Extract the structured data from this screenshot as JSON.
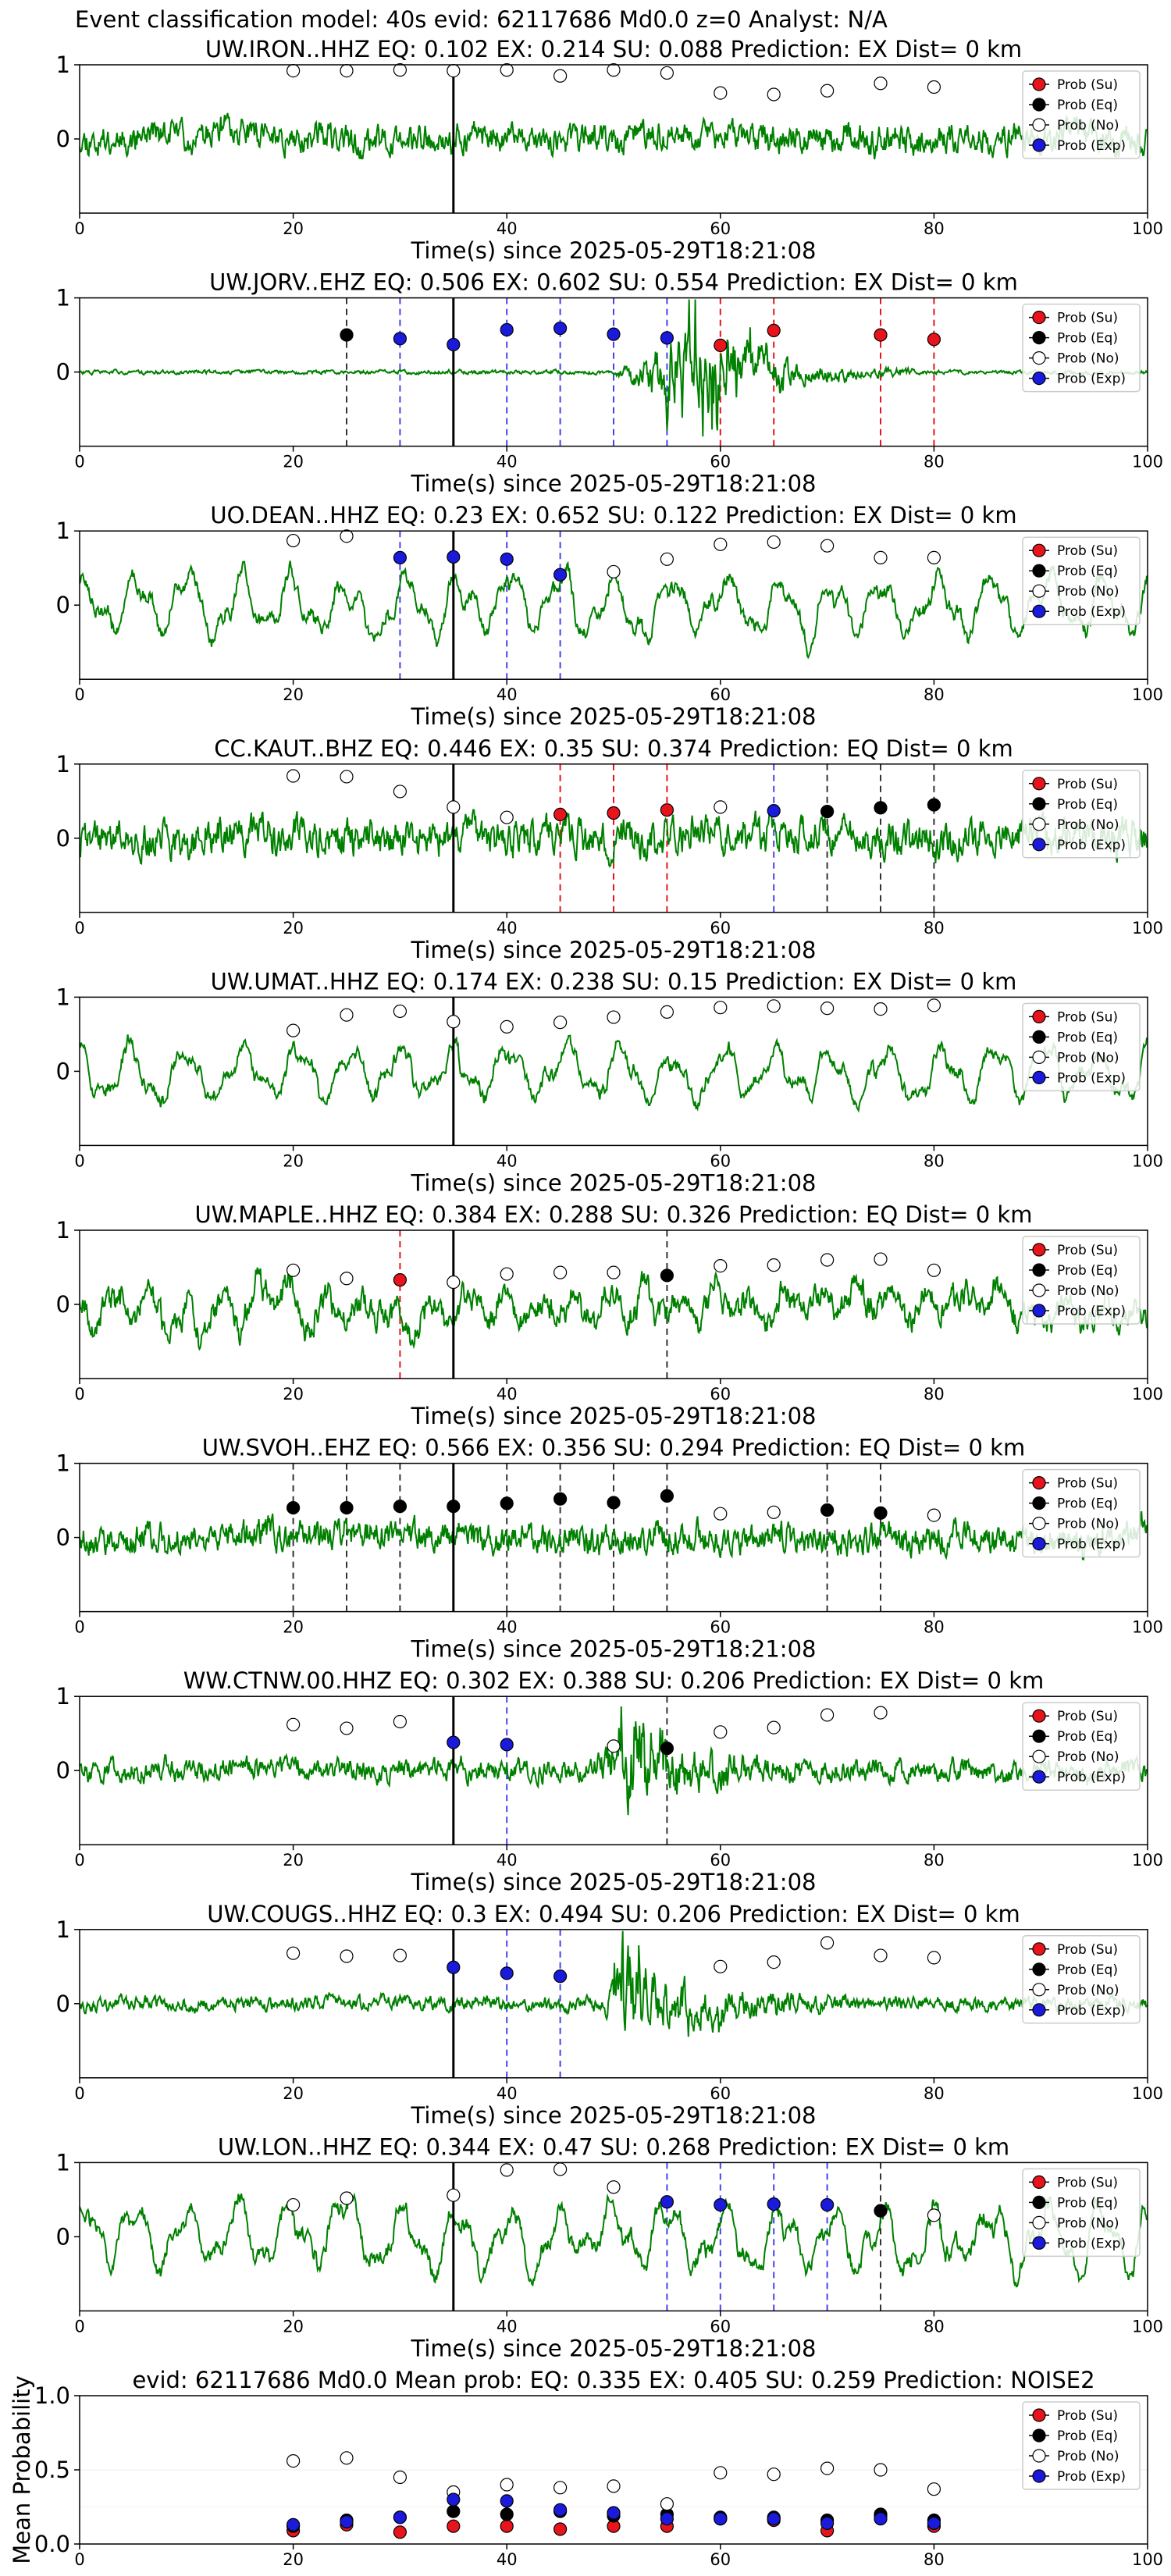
{
  "title": "Event classification model: 40s evid: 62117686 Md0.0 z=0 Analyst: N/A",
  "xlabel": "Time(s) since 2025-05-29T18:21:08",
  "legend": [
    "Prob (Su)",
    "Prob (Eq)",
    "Prob (No)",
    "Prob (Exp)"
  ],
  "colors": {
    "su": "#e8141c",
    "eq": "#000000",
    "no": "#ffffff",
    "exp": "#1a1adb",
    "waveform": "#008000",
    "su_line": "#e8141c",
    "eq_line": "#333333",
    "exp_line": "#4444ee"
  },
  "chart_data": [
    {
      "type": "line",
      "title": "UW.IRON..HHZ   EQ: 0.102  EX: 0.214  SU: 0.088   Prediction: EX    Dist= 0 km",
      "xlim": [
        0,
        100
      ],
      "ylim": [
        -1,
        1
      ],
      "xticks": [
        0,
        20,
        40,
        60,
        80,
        100
      ],
      "yticks": [
        "1",
        "0"
      ],
      "origin": 35,
      "waveform": {
        "style": "noisy",
        "amplitude": 0.38,
        "burst": null,
        "seed": 11
      },
      "points": [
        {
          "t": 20,
          "cls": "no",
          "p": 0.92
        },
        {
          "t": 25,
          "cls": "no",
          "p": 0.92
        },
        {
          "t": 30,
          "cls": "no",
          "p": 0.93
        },
        {
          "t": 35,
          "cls": "no",
          "p": 0.92
        },
        {
          "t": 40,
          "cls": "no",
          "p": 0.93
        },
        {
          "t": 45,
          "cls": "no",
          "p": 0.85
        },
        {
          "t": 50,
          "cls": "no",
          "p": 0.93
        },
        {
          "t": 55,
          "cls": "no",
          "p": 0.89
        },
        {
          "t": 60,
          "cls": "no",
          "p": 0.62
        },
        {
          "t": 65,
          "cls": "no",
          "p": 0.6
        },
        {
          "t": 70,
          "cls": "no",
          "p": 0.65
        },
        {
          "t": 75,
          "cls": "no",
          "p": 0.75
        },
        {
          "t": 80,
          "cls": "no",
          "p": 0.7
        }
      ]
    },
    {
      "type": "line",
      "title": "UW.JORV..EHZ   EQ: 0.506  EX: 0.602  SU: 0.554   Prediction: EX    Dist= 0 km",
      "xlim": [
        0,
        100
      ],
      "ylim": [
        -1,
        1
      ],
      "xticks": [
        0,
        20,
        40,
        60,
        80,
        100
      ],
      "yticks": [
        "1",
        "0"
      ],
      "origin": 35,
      "waveform": {
        "style": "quiet",
        "amplitude": 0.05,
        "burst": {
          "start": 50,
          "peak": 58,
          "end": 78,
          "amp": 0.95
        },
        "seed": 23
      },
      "points": [
        {
          "t": 25,
          "cls": "eq",
          "p": 0.5
        },
        {
          "t": 30,
          "cls": "exp",
          "p": 0.45
        },
        {
          "t": 35,
          "cls": "exp",
          "p": 0.37
        },
        {
          "t": 40,
          "cls": "exp",
          "p": 0.57
        },
        {
          "t": 45,
          "cls": "exp",
          "p": 0.59
        },
        {
          "t": 50,
          "cls": "exp",
          "p": 0.51
        },
        {
          "t": 55,
          "cls": "exp",
          "p": 0.46
        },
        {
          "t": 60,
          "cls": "su",
          "p": 0.36
        },
        {
          "t": 65,
          "cls": "su",
          "p": 0.56
        },
        {
          "t": 75,
          "cls": "su",
          "p": 0.5
        },
        {
          "t": 80,
          "cls": "su",
          "p": 0.44
        }
      ]
    },
    {
      "type": "line",
      "title": "UO.DEAN..HHZ   EQ: 0.23  EX: 0.652  SU: 0.122   Prediction: EX    Dist= 0 km",
      "xlim": [
        0,
        100
      ],
      "ylim": [
        -1,
        1
      ],
      "xticks": [
        0,
        20,
        40,
        60,
        80,
        100
      ],
      "yticks": [
        "1",
        "0"
      ],
      "origin": 35,
      "waveform": {
        "style": "slow",
        "amplitude": 0.55,
        "burst": null,
        "seed": 37
      },
      "points": [
        {
          "t": 20,
          "cls": "no",
          "p": 0.87
        },
        {
          "t": 25,
          "cls": "no",
          "p": 0.93
        },
        {
          "t": 30,
          "cls": "exp",
          "p": 0.64
        },
        {
          "t": 35,
          "cls": "exp",
          "p": 0.65
        },
        {
          "t": 40,
          "cls": "exp",
          "p": 0.62
        },
        {
          "t": 45,
          "cls": "exp",
          "p": 0.41
        },
        {
          "t": 50,
          "cls": "no",
          "p": 0.45
        },
        {
          "t": 55,
          "cls": "no",
          "p": 0.62
        },
        {
          "t": 60,
          "cls": "no",
          "p": 0.82
        },
        {
          "t": 65,
          "cls": "no",
          "p": 0.85
        },
        {
          "t": 70,
          "cls": "no",
          "p": 0.8
        },
        {
          "t": 75,
          "cls": "no",
          "p": 0.64
        },
        {
          "t": 80,
          "cls": "no",
          "p": 0.64
        }
      ]
    },
    {
      "type": "line",
      "title": "CC.KAUT..BHZ   EQ: 0.446  EX: 0.35  SU: 0.374   Prediction: EQ    Dist= 0 km",
      "xlim": [
        0,
        100
      ],
      "ylim": [
        -1,
        1
      ],
      "xticks": [
        0,
        20,
        40,
        60,
        80,
        100
      ],
      "yticks": [
        "1",
        "0"
      ],
      "origin": 35,
      "waveform": {
        "style": "noisy",
        "amplitude": 0.48,
        "burst": null,
        "seed": 41
      },
      "points": [
        {
          "t": 20,
          "cls": "no",
          "p": 0.84
        },
        {
          "t": 25,
          "cls": "no",
          "p": 0.83
        },
        {
          "t": 30,
          "cls": "no",
          "p": 0.63
        },
        {
          "t": 35,
          "cls": "no",
          "p": 0.42
        },
        {
          "t": 40,
          "cls": "no",
          "p": 0.28
        },
        {
          "t": 45,
          "cls": "su",
          "p": 0.32
        },
        {
          "t": 50,
          "cls": "su",
          "p": 0.34
        },
        {
          "t": 55,
          "cls": "su",
          "p": 0.38
        },
        {
          "t": 60,
          "cls": "no",
          "p": 0.42
        },
        {
          "t": 65,
          "cls": "exp",
          "p": 0.37
        },
        {
          "t": 70,
          "cls": "eq",
          "p": 0.36
        },
        {
          "t": 75,
          "cls": "eq",
          "p": 0.41
        },
        {
          "t": 80,
          "cls": "eq",
          "p": 0.45
        }
      ]
    },
    {
      "type": "line",
      "title": "UW.UMAT..HHZ   EQ: 0.174  EX: 0.238  SU: 0.15   Prediction: EX    Dist= 0 km",
      "xlim": [
        0,
        100
      ],
      "ylim": [
        -1,
        1
      ],
      "xticks": [
        0,
        20,
        40,
        60,
        80,
        100
      ],
      "yticks": [
        "1",
        "0"
      ],
      "origin": 35,
      "waveform": {
        "style": "slow",
        "amplitude": 0.5,
        "burst": null,
        "seed": 53
      },
      "points": [
        {
          "t": 20,
          "cls": "no",
          "p": 0.55
        },
        {
          "t": 25,
          "cls": "no",
          "p": 0.76
        },
        {
          "t": 30,
          "cls": "no",
          "p": 0.81
        },
        {
          "t": 35,
          "cls": "no",
          "p": 0.67
        },
        {
          "t": 40,
          "cls": "no",
          "p": 0.6
        },
        {
          "t": 45,
          "cls": "no",
          "p": 0.66
        },
        {
          "t": 50,
          "cls": "no",
          "p": 0.73
        },
        {
          "t": 55,
          "cls": "no",
          "p": 0.8
        },
        {
          "t": 60,
          "cls": "no",
          "p": 0.86
        },
        {
          "t": 65,
          "cls": "no",
          "p": 0.88
        },
        {
          "t": 70,
          "cls": "no",
          "p": 0.85
        },
        {
          "t": 75,
          "cls": "no",
          "p": 0.84
        },
        {
          "t": 80,
          "cls": "no",
          "p": 0.89
        }
      ]
    },
    {
      "type": "line",
      "title": "UW.MAPLE..HHZ   EQ: 0.384  EX: 0.288  SU: 0.326   Prediction: EQ    Dist= 0 km",
      "xlim": [
        0,
        100
      ],
      "ylim": [
        -1,
        1
      ],
      "xticks": [
        0,
        20,
        40,
        60,
        80,
        100
      ],
      "yticks": [
        "1",
        "0"
      ],
      "origin": 35,
      "waveform": {
        "style": "mixed",
        "amplitude": 0.55,
        "burst": null,
        "seed": 67
      },
      "points": [
        {
          "t": 20,
          "cls": "no",
          "p": 0.46
        },
        {
          "t": 25,
          "cls": "no",
          "p": 0.35
        },
        {
          "t": 30,
          "cls": "su",
          "p": 0.33
        },
        {
          "t": 35,
          "cls": "no",
          "p": 0.3
        },
        {
          "t": 40,
          "cls": "no",
          "p": 0.41
        },
        {
          "t": 45,
          "cls": "no",
          "p": 0.43
        },
        {
          "t": 50,
          "cls": "no",
          "p": 0.43
        },
        {
          "t": 55,
          "cls": "eq",
          "p": 0.39
        },
        {
          "t": 60,
          "cls": "no",
          "p": 0.52
        },
        {
          "t": 65,
          "cls": "no",
          "p": 0.53
        },
        {
          "t": 70,
          "cls": "no",
          "p": 0.6
        },
        {
          "t": 75,
          "cls": "no",
          "p": 0.61
        },
        {
          "t": 80,
          "cls": "no",
          "p": 0.46
        }
      ]
    },
    {
      "type": "line",
      "title": "UW.SVOH..EHZ   EQ: 0.566  EX: 0.356  SU: 0.294   Prediction: EQ    Dist= 0 km",
      "xlim": [
        0,
        100
      ],
      "ylim": [
        -1,
        1
      ],
      "xticks": [
        0,
        20,
        40,
        60,
        80,
        100
      ],
      "yticks": [
        "1",
        "0"
      ],
      "origin": 35,
      "waveform": {
        "style": "noisy",
        "amplitude": 0.4,
        "burst": null,
        "seed": 79
      },
      "points": [
        {
          "t": 20,
          "cls": "eq",
          "p": 0.4
        },
        {
          "t": 25,
          "cls": "eq",
          "p": 0.4
        },
        {
          "t": 30,
          "cls": "eq",
          "p": 0.42
        },
        {
          "t": 35,
          "cls": "eq",
          "p": 0.42
        },
        {
          "t": 40,
          "cls": "eq",
          "p": 0.46
        },
        {
          "t": 45,
          "cls": "eq",
          "p": 0.52
        },
        {
          "t": 50,
          "cls": "eq",
          "p": 0.47
        },
        {
          "t": 55,
          "cls": "eq",
          "p": 0.56
        },
        {
          "t": 60,
          "cls": "no",
          "p": 0.32
        },
        {
          "t": 65,
          "cls": "no",
          "p": 0.34
        },
        {
          "t": 70,
          "cls": "eq",
          "p": 0.37
        },
        {
          "t": 75,
          "cls": "eq",
          "p": 0.33
        },
        {
          "t": 80,
          "cls": "no",
          "p": 0.3
        }
      ]
    },
    {
      "type": "line",
      "title": "WW.CTNW.00.HHZ   EQ: 0.302  EX: 0.388  SU: 0.206   Prediction: EX    Dist= 0 km",
      "xlim": [
        0,
        100
      ],
      "ylim": [
        -1,
        1
      ],
      "xticks": [
        0,
        20,
        40,
        60,
        80,
        100
      ],
      "yticks": [
        "1",
        "0"
      ],
      "origin": 35,
      "waveform": {
        "style": "noisy",
        "amplitude": 0.28,
        "burst": {
          "start": 48,
          "peak": 52,
          "end": 68,
          "amp": 0.85
        },
        "seed": 83
      },
      "points": [
        {
          "t": 20,
          "cls": "no",
          "p": 0.62
        },
        {
          "t": 25,
          "cls": "no",
          "p": 0.57
        },
        {
          "t": 30,
          "cls": "no",
          "p": 0.66
        },
        {
          "t": 35,
          "cls": "exp",
          "p": 0.38
        },
        {
          "t": 40,
          "cls": "exp",
          "p": 0.35
        },
        {
          "t": 50,
          "cls": "no",
          "p": 0.33
        },
        {
          "t": 55,
          "cls": "eq",
          "p": 0.3
        },
        {
          "t": 60,
          "cls": "no",
          "p": 0.52
        },
        {
          "t": 65,
          "cls": "no",
          "p": 0.58
        },
        {
          "t": 70,
          "cls": "no",
          "p": 0.75
        },
        {
          "t": 75,
          "cls": "no",
          "p": 0.78
        }
      ]
    },
    {
      "type": "line",
      "title": "UW.COUGS..HHZ   EQ: 0.3  EX: 0.494  SU: 0.206   Prediction: EX    Dist= 0 km",
      "xlim": [
        0,
        100
      ],
      "ylim": [
        -1,
        1
      ],
      "xticks": [
        0,
        20,
        40,
        60,
        80,
        100
      ],
      "yticks": [
        "1",
        "0"
      ],
      "origin": 35,
      "waveform": {
        "style": "noisy",
        "amplitude": 0.18,
        "burst": {
          "start": 49,
          "peak": 51,
          "end": 72,
          "amp": 0.92
        },
        "seed": 97
      },
      "points": [
        {
          "t": 20,
          "cls": "no",
          "p": 0.68
        },
        {
          "t": 25,
          "cls": "no",
          "p": 0.64
        },
        {
          "t": 30,
          "cls": "no",
          "p": 0.65
        },
        {
          "t": 35,
          "cls": "exp",
          "p": 0.49
        },
        {
          "t": 40,
          "cls": "exp",
          "p": 0.41
        },
        {
          "t": 45,
          "cls": "exp",
          "p": 0.37
        },
        {
          "t": 60,
          "cls": "no",
          "p": 0.5
        },
        {
          "t": 65,
          "cls": "no",
          "p": 0.56
        },
        {
          "t": 70,
          "cls": "no",
          "p": 0.82
        },
        {
          "t": 75,
          "cls": "no",
          "p": 0.65
        },
        {
          "t": 80,
          "cls": "no",
          "p": 0.62
        }
      ]
    },
    {
      "type": "line",
      "title": "UW.LON..HHZ   EQ: 0.344  EX: 0.47  SU: 0.268   Prediction: EX    Dist= 0 km",
      "xlim": [
        0,
        100
      ],
      "ylim": [
        -1,
        1
      ],
      "xticks": [
        0,
        20,
        40,
        60,
        80,
        100
      ],
      "yticks": [
        "1",
        "0"
      ],
      "origin": 35,
      "waveform": {
        "style": "slow",
        "amplitude": 0.6,
        "burst": null,
        "seed": 103
      },
      "points": [
        {
          "t": 20,
          "cls": "no",
          "p": 0.43
        },
        {
          "t": 25,
          "cls": "no",
          "p": 0.52
        },
        {
          "t": 35,
          "cls": "no",
          "p": 0.56
        },
        {
          "t": 40,
          "cls": "no",
          "p": 0.9
        },
        {
          "t": 45,
          "cls": "no",
          "p": 0.91
        },
        {
          "t": 50,
          "cls": "no",
          "p": 0.67
        },
        {
          "t": 55,
          "cls": "exp",
          "p": 0.47
        },
        {
          "t": 60,
          "cls": "exp",
          "p": 0.43
        },
        {
          "t": 65,
          "cls": "exp",
          "p": 0.44
        },
        {
          "t": 70,
          "cls": "exp",
          "p": 0.43
        },
        {
          "t": 75,
          "cls": "eq",
          "p": 0.35
        },
        {
          "t": 80,
          "cls": "no",
          "p": 0.29
        }
      ]
    },
    {
      "type": "scatter",
      "title": "evid: 62117686  Md0.0   Mean prob:   EQ: 0.335  EX: 0.405  SU: 0.259   Prediction: NOISE2",
      "ylabel": "Mean Probability",
      "xlim": [
        0,
        100
      ],
      "ylim": [
        0,
        1
      ],
      "xticks": [
        0,
        20,
        40,
        60,
        80,
        100
      ],
      "yticks": [
        "1.0",
        "0.5",
        "0.0"
      ],
      "series": [
        {
          "name": "Prob (Su)",
          "cls": "su",
          "x": [
            20,
            25,
            30,
            35,
            40,
            45,
            50,
            55,
            60,
            65,
            70,
            75,
            80
          ],
          "values": [
            0.09,
            0.13,
            0.08,
            0.12,
            0.12,
            0.1,
            0.12,
            0.12,
            0.17,
            0.16,
            0.09,
            0.19,
            0.12
          ]
        },
        {
          "name": "Prob (Eq)",
          "cls": "eq",
          "x": [
            20,
            25,
            30,
            35,
            40,
            45,
            50,
            55,
            60,
            65,
            70,
            75,
            80
          ],
          "values": [
            0.12,
            0.16,
            0.18,
            0.22,
            0.2,
            0.22,
            0.19,
            0.2,
            0.18,
            0.18,
            0.16,
            0.2,
            0.16
          ]
        },
        {
          "name": "Prob (No)",
          "cls": "no",
          "x": [
            20,
            25,
            30,
            35,
            40,
            45,
            50,
            55,
            60,
            65,
            70,
            75,
            80
          ],
          "values": [
            0.56,
            0.58,
            0.45,
            0.35,
            0.4,
            0.38,
            0.39,
            0.27,
            0.48,
            0.47,
            0.51,
            0.5,
            0.37
          ]
        },
        {
          "name": "Prob (Exp)",
          "cls": "exp",
          "x": [
            20,
            25,
            30,
            35,
            40,
            45,
            50,
            55,
            60,
            65,
            70,
            75,
            80
          ],
          "values": [
            0.13,
            0.15,
            0.18,
            0.3,
            0.29,
            0.23,
            0.21,
            0.17,
            0.17,
            0.17,
            0.14,
            0.17,
            0.14
          ]
        }
      ]
    }
  ]
}
